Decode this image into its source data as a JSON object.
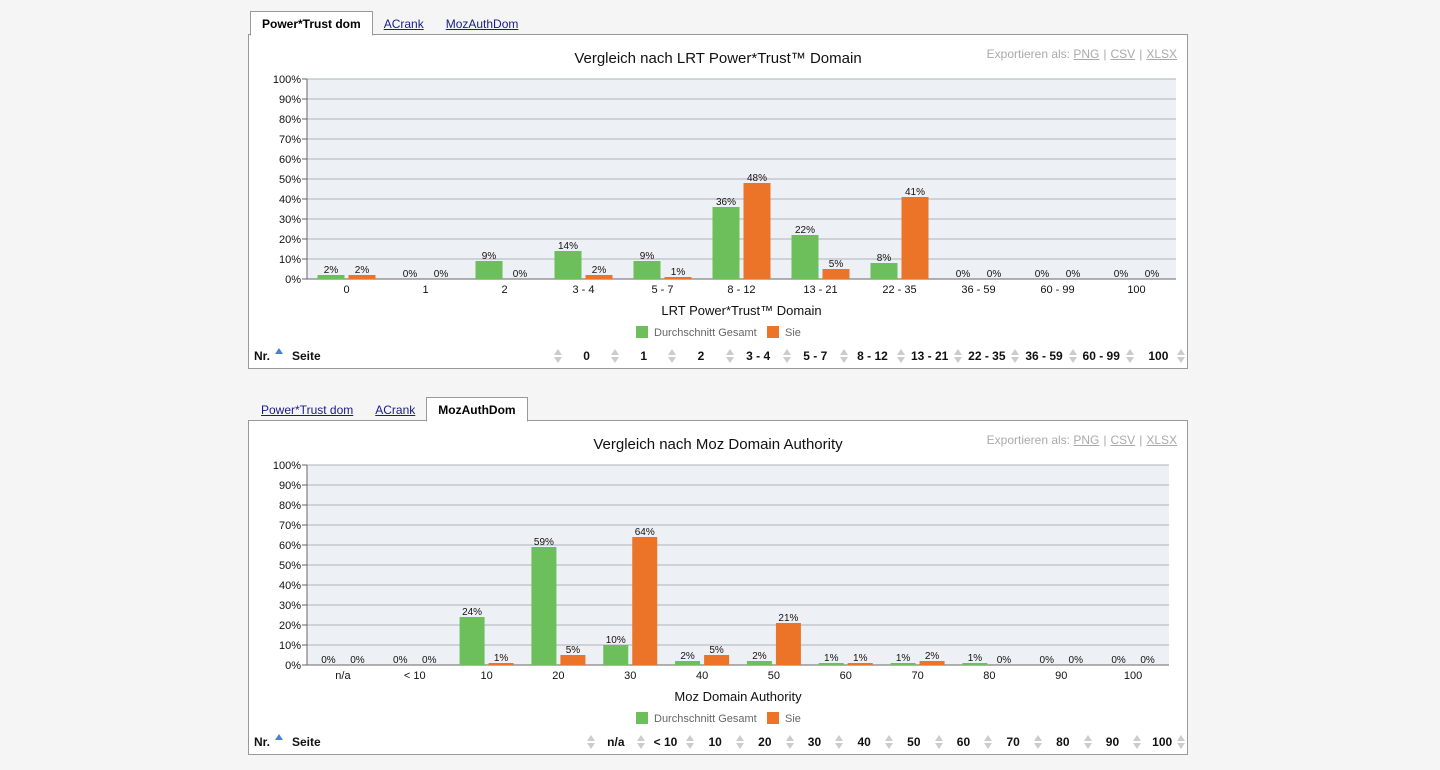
{
  "colors": {
    "avg": "#6cbf5a",
    "you": "#ec7429",
    "plot_bg": "#edf1f5",
    "grid": "#aeb4bc"
  },
  "charts": [
    {
      "tabs": [
        {
          "label": "Power*Trust dom",
          "active": true
        },
        {
          "label": "ACrank",
          "active": false
        },
        {
          "label": "MozAuthDom",
          "active": false
        }
      ],
      "export": {
        "label": "Exportieren als:",
        "png": "PNG",
        "csv": "CSV",
        "xlsx": "XLSX"
      },
      "table_header": {
        "nr": "Nr.",
        "seite": "Seite"
      }
    },
    {
      "tabs": [
        {
          "label": "Power*Trust dom",
          "active": false
        },
        {
          "label": "ACrank",
          "active": false
        },
        {
          "label": "MozAuthDom",
          "active": true
        }
      ],
      "export": {
        "label": "Exportieren als:",
        "png": "PNG",
        "csv": "CSV",
        "xlsx": "XLSX"
      },
      "table_header": {
        "nr": "Nr.",
        "seite": "Seite"
      }
    }
  ],
  "chart_data": [
    {
      "type": "bar",
      "title": "Vergleich nach LRT Power*Trust™ Domain",
      "xlabel": "LRT Power*Trust™ Domain",
      "ylabel": "",
      "ylim": [
        0,
        100
      ],
      "yticks": [
        "0%",
        "10%",
        "20%",
        "30%",
        "40%",
        "50%",
        "60%",
        "70%",
        "80%",
        "90%",
        "100%"
      ],
      "categories": [
        "0",
        "1",
        "2",
        "3 - 4",
        "5 - 7",
        "8 - 12",
        "13 - 21",
        "22 - 35",
        "36 - 59",
        "60 - 99",
        "100"
      ],
      "series": [
        {
          "name": "Durchschnitt Gesamt",
          "values": [
            2,
            0,
            9,
            14,
            9,
            36,
            22,
            8,
            0,
            0,
            0
          ],
          "labels": [
            "2%",
            "0%",
            "9%",
            "14%",
            "9%",
            "36%",
            "22%",
            "8%",
            "0%",
            "0%",
            "0%"
          ]
        },
        {
          "name": "Sie",
          "values": [
            2,
            0,
            0,
            2,
            1,
            48,
            5,
            41,
            0,
            0,
            0
          ],
          "labels": [
            "2%",
            "0%",
            "0%",
            "2%",
            "1%",
            "48%",
            "5%",
            "41%",
            "0%",
            "0%",
            "0%"
          ]
        }
      ],
      "legend": "bottom",
      "grid": true
    },
    {
      "type": "bar",
      "title": "Vergleich nach Moz Domain Authority",
      "xlabel": "Moz Domain Authority",
      "ylabel": "",
      "ylim": [
        0,
        100
      ],
      "yticks": [
        "0%",
        "10%",
        "20%",
        "30%",
        "40%",
        "50%",
        "60%",
        "70%",
        "80%",
        "90%",
        "100%"
      ],
      "categories": [
        "n/a",
        "< 10",
        "10",
        "20",
        "30",
        "40",
        "50",
        "60",
        "70",
        "80",
        "90",
        "100"
      ],
      "series": [
        {
          "name": "Durchschnitt Gesamt",
          "values": [
            0,
            0,
            24,
            59,
            10,
            2,
            2,
            1,
            1,
            1,
            0,
            0
          ],
          "labels": [
            "0%",
            "0%",
            "24%",
            "59%",
            "10%",
            "2%",
            "2%",
            "1%",
            "1%",
            "1%",
            "0%",
            "0%"
          ]
        },
        {
          "name": "Sie",
          "values": [
            0,
            0,
            1,
            5,
            64,
            5,
            21,
            1,
            2,
            0,
            0,
            0
          ],
          "labels": [
            "0%",
            "0%",
            "1%",
            "5%",
            "64%",
            "5%",
            "21%",
            "1%",
            "2%",
            "0%",
            "0%",
            "0%"
          ]
        }
      ],
      "legend": "bottom",
      "grid": true
    }
  ]
}
